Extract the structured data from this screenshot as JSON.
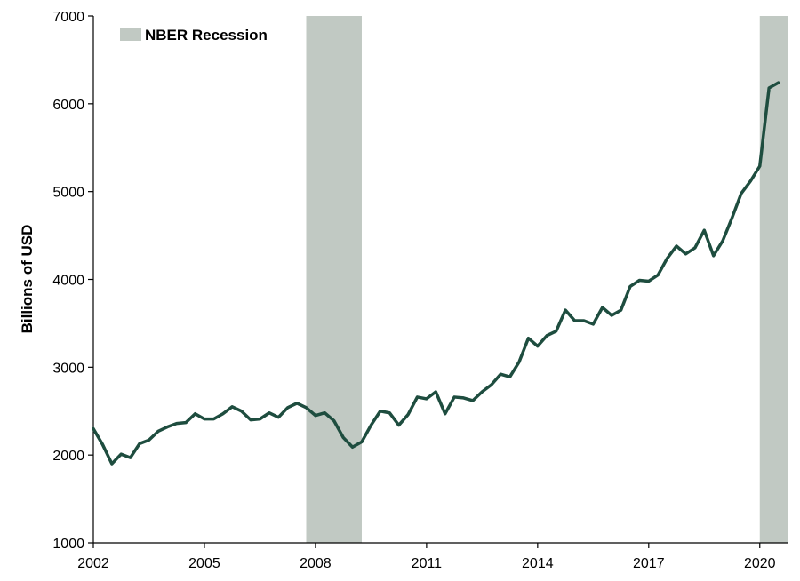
{
  "chart_data": {
    "type": "line",
    "ylabel": "Billions of USD",
    "xlabel": "",
    "title": "",
    "xlim": [
      2002.0,
      2020.75
    ],
    "ylim": [
      1000,
      7000
    ],
    "x_ticks": [
      "2002",
      "2005",
      "2008",
      "2011",
      "2014",
      "2017",
      "2020"
    ],
    "y_ticks": [
      "1000",
      "2000",
      "3000",
      "4000",
      "5000",
      "6000",
      "7000"
    ],
    "grid": false,
    "legend": {
      "placement": "top-left",
      "label": "NBER Recession"
    },
    "colors": {
      "line": "#1e4d3f",
      "recession": "#c1c9c3",
      "axis": "#000000"
    },
    "recessions": [
      {
        "start": 2007.75,
        "end": 2009.25
      },
      {
        "start": 2020.0,
        "end": 2020.75
      }
    ],
    "series": [
      {
        "x": [
          2002.0,
          2002.25,
          2002.5,
          2002.75,
          2003.0,
          2003.25,
          2003.5,
          2003.75,
          2004.0,
          2004.25,
          2004.5,
          2004.75,
          2005.0,
          2005.25,
          2005.5,
          2005.75,
          2006.0,
          2006.25,
          2006.5,
          2006.75,
          2007.0,
          2007.25,
          2007.5,
          2007.75,
          2008.0,
          2008.25,
          2008.5,
          2008.75,
          2009.0,
          2009.25,
          2009.5,
          2009.75,
          2010.0,
          2010.25,
          2010.5,
          2010.75,
          2011.0,
          2011.25,
          2011.5,
          2011.75,
          2012.0,
          2012.25,
          2012.5,
          2012.75,
          2013.0,
          2013.25,
          2013.5,
          2013.75,
          2014.0,
          2014.25,
          2014.5,
          2014.75,
          2015.0,
          2015.25,
          2015.5,
          2015.75,
          2016.0,
          2016.25,
          2016.5,
          2016.75,
          2017.0,
          2017.25,
          2017.5,
          2017.75,
          2018.0,
          2018.25,
          2018.5,
          2018.75,
          2019.0,
          2019.25,
          2019.5,
          2019.75,
          2020.0,
          2020.25,
          2020.5
        ],
        "values": [
          2300,
          2120,
          1900,
          2010,
          1970,
          2130,
          2170,
          2270,
          2320,
          2360,
          2370,
          2470,
          2410,
          2410,
          2470,
          2550,
          2500,
          2400,
          2410,
          2480,
          2430,
          2540,
          2590,
          2540,
          2450,
          2480,
          2390,
          2200,
          2090,
          2150,
          2340,
          2500,
          2480,
          2340,
          2460,
          2660,
          2640,
          2720,
          2470,
          2660,
          2650,
          2620,
          2720,
          2800,
          2920,
          2890,
          3060,
          3330,
          3240,
          3360,
          3410,
          3650,
          3530,
          3530,
          3490,
          3680,
          3590,
          3650,
          3920,
          3990,
          3980,
          4050,
          4240,
          4380,
          4290,
          4360,
          4560,
          4270,
          4440,
          4700,
          4980,
          5120,
          5290,
          6180,
          6240
        ]
      }
    ]
  }
}
